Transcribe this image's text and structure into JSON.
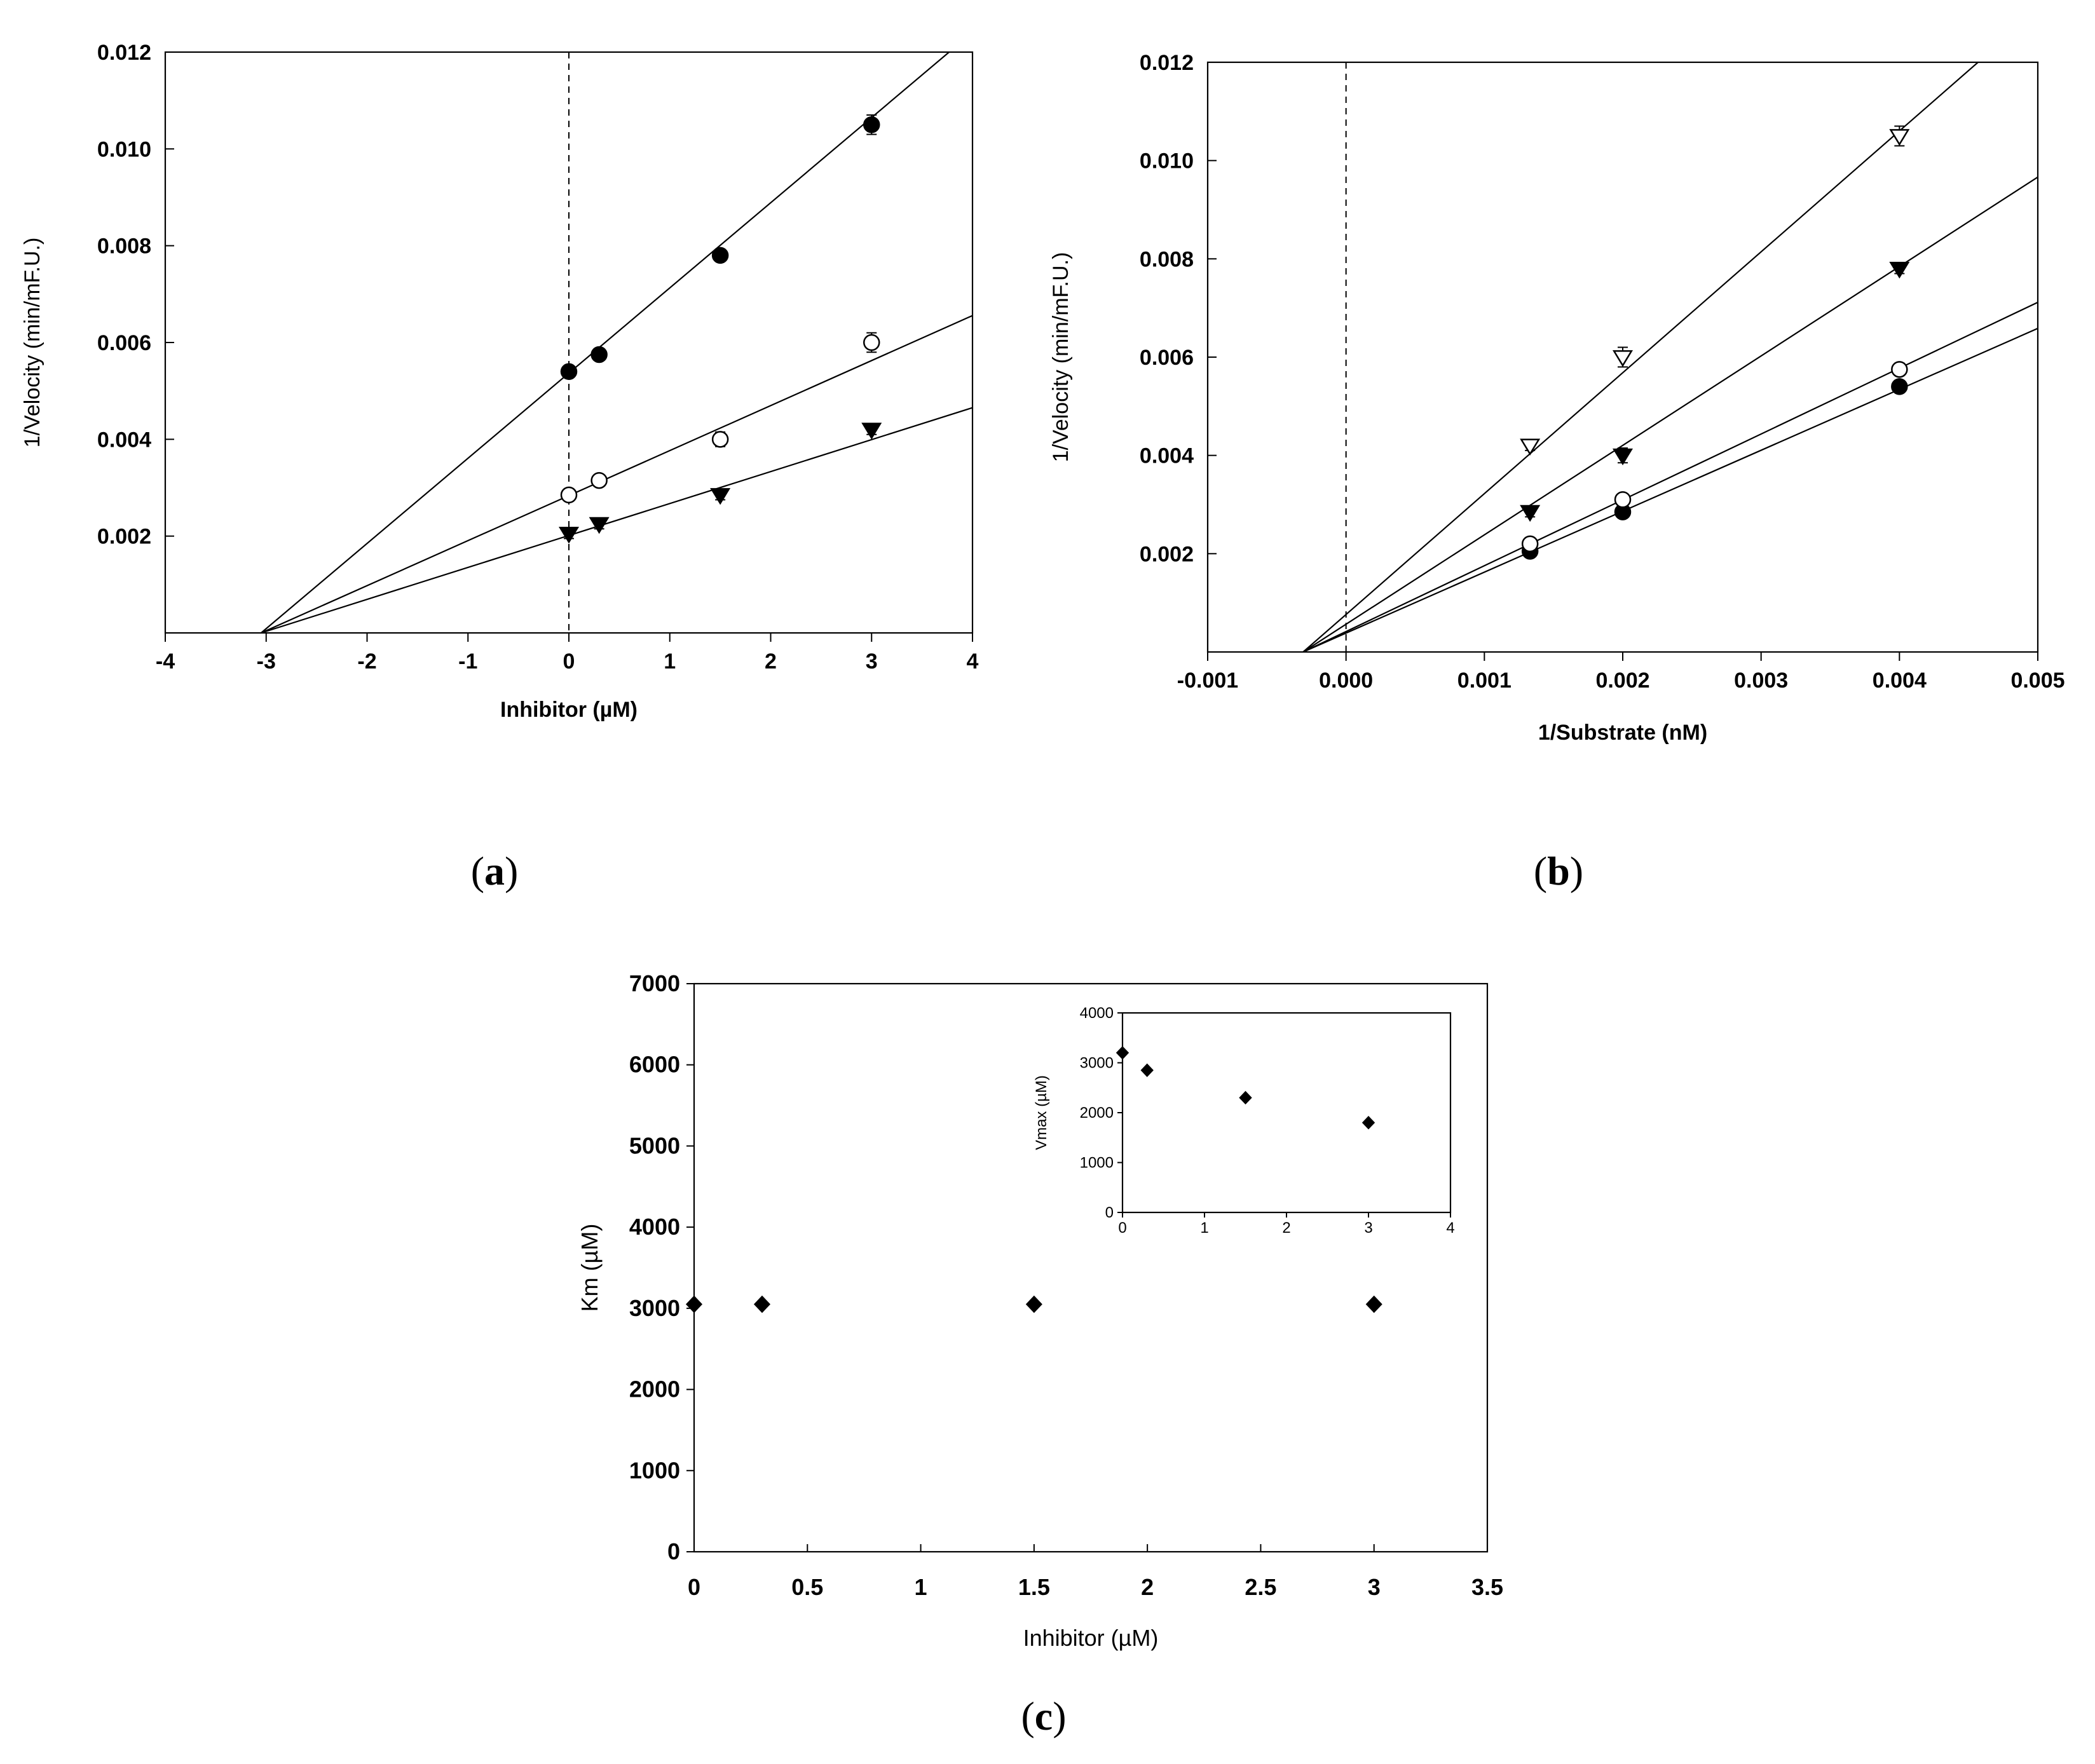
{
  "captions": {
    "a": {
      "open": "(",
      "letter": "a",
      "close": ")"
    },
    "b": {
      "open": "(",
      "letter": "b",
      "close": ")"
    },
    "c": {
      "open": "(",
      "letter": "c",
      "close": ")"
    }
  },
  "chart_data": [
    {
      "id": "a",
      "type": "scatter",
      "xlabel": "Inhibitor (µM)",
      "ylabel": "1/Velocity (min/mF.U.)",
      "xlim": [
        -4,
        4
      ],
      "ylim": [
        0,
        0.012
      ],
      "xticks": [
        "-4",
        "-3",
        "-2",
        "-1",
        "0",
        "1",
        "2",
        "3",
        "4"
      ],
      "yticks": [
        "0.002",
        "0.004",
        "0.006",
        "0.008",
        "0.010",
        "0.012"
      ],
      "reference_line": {
        "x": 0,
        "style": "dashed"
      },
      "grid": false,
      "fit_lines": true,
      "series": [
        {
          "marker": "filled-circle",
          "x": [
            0,
            0.3,
            1.5,
            3
          ],
          "y": [
            0.0054,
            0.00575,
            0.0078,
            0.0105
          ],
          "error": [
            0.0001,
            0.0001,
            0.0001,
            0.0002
          ],
          "fit": {
            "x0": -3.05,
            "slope": 0.00176
          }
        },
        {
          "marker": "open-circle",
          "x": [
            0,
            0.3,
            1.5,
            3
          ],
          "y": [
            0.00285,
            0.00315,
            0.004,
            0.006
          ],
          "error": [
            0.0001,
            0.0001,
            0.00015,
            0.0002
          ],
          "fit": {
            "x0": -3.05,
            "slope": 0.00093
          }
        },
        {
          "marker": "filled-triangle-down",
          "x": [
            0,
            0.3,
            1.5,
            3
          ],
          "y": [
            0.00205,
            0.00225,
            0.00285,
            0.0042
          ],
          "error": [
            0.0001,
            0.0001,
            0.0001,
            0.0001
          ],
          "fit": {
            "x0": -3.05,
            "slope": 0.00066
          }
        }
      ]
    },
    {
      "id": "b",
      "type": "scatter",
      "xlabel": "1/Substrate (nM)",
      "ylabel": "1/Velocity (min/mF.U.)",
      "xlim": [
        -0.001,
        0.005
      ],
      "ylim": [
        0,
        0.012
      ],
      "xticks": [
        "-0.001",
        "0.000",
        "0.001",
        "0.002",
        "0.003",
        "0.004",
        "0.005"
      ],
      "yticks": [
        "0.002",
        "0.004",
        "0.006",
        "0.008",
        "0.010",
        "0.012"
      ],
      "reference_line": {
        "x": 0,
        "style": "dashed"
      },
      "grid": false,
      "fit_lines": true,
      "series": [
        {
          "marker": "filled-circle",
          "x": [
            0.00133,
            0.002,
            0.004
          ],
          "y": [
            0.00205,
            0.00285,
            0.0054
          ],
          "error": [
            0.0001,
            0.0001,
            0.0001
          ],
          "fit": {
            "x0": -0.00031,
            "slope": 1.24
          }
        },
        {
          "marker": "open-circle",
          "x": [
            0.00133,
            0.002,
            0.004
          ],
          "y": [
            0.0022,
            0.0031,
            0.00575
          ],
          "error": [
            0.0001,
            0.0001,
            0.0001
          ],
          "fit": {
            "x0": -0.00031,
            "slope": 1.34
          }
        },
        {
          "marker": "filled-triangle-down",
          "x": [
            0.00133,
            0.002,
            0.004
          ],
          "y": [
            0.00285,
            0.004,
            0.0078
          ],
          "error": [
            0.0001,
            0.00015,
            0.0001
          ],
          "fit": {
            "x0": -0.00031,
            "slope": 1.82
          }
        },
        {
          "marker": "open-triangle-down",
          "x": [
            0.00133,
            0.002,
            0.004
          ],
          "y": [
            0.0042,
            0.006,
            0.0105
          ],
          "error": [
            0.0001,
            0.0002,
            0.0002
          ],
          "fit": {
            "x0": -0.00031,
            "slope": 2.46
          }
        }
      ]
    },
    {
      "id": "c",
      "type": "scatter",
      "xlabel": "Inhibitor (µM)",
      "ylabel": "Km (µM)",
      "xlim": [
        0,
        3.5
      ],
      "ylim": [
        0,
        7000
      ],
      "xticks": [
        "0",
        "0.5",
        "1",
        "1.5",
        "2",
        "2.5",
        "3",
        "3.5"
      ],
      "yticks": [
        "0",
        "1000",
        "2000",
        "3000",
        "4000",
        "5000",
        "6000",
        "7000"
      ],
      "grid": false,
      "series": [
        {
          "marker": "filled-diamond",
          "x": [
            0,
            0.3,
            1.5,
            3
          ],
          "y": [
            3050,
            3050,
            3050,
            3050
          ]
        }
      ]
    },
    {
      "id": "c-inset",
      "type": "scatter",
      "xlabel": "",
      "ylabel": "Vmax (µM)",
      "xlim": [
        0,
        4
      ],
      "ylim": [
        0,
        4000
      ],
      "xticks": [
        "0",
        "1",
        "2",
        "3",
        "4"
      ],
      "yticks": [
        "0",
        "1000",
        "2000",
        "3000",
        "4000"
      ],
      "grid": false,
      "series": [
        {
          "marker": "filled-diamond",
          "x": [
            0,
            0.3,
            1.5,
            3
          ],
          "y": [
            3200,
            2850,
            2300,
            1800
          ]
        }
      ]
    }
  ]
}
